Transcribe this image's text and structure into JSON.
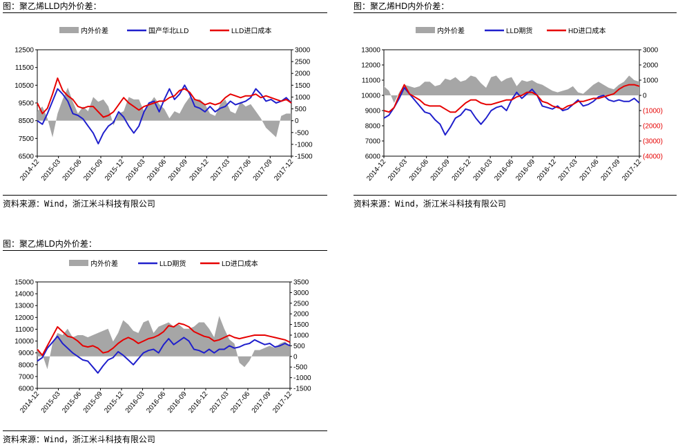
{
  "charts": [
    {
      "title": "图：聚乙烯LLD内外价差：",
      "source": "资料来源：Wind，浙江米斗科技有限公司",
      "chart_data": {
        "type": "line",
        "x_labels": [
          "2014-12",
          "2015-03",
          "2015-06",
          "2015-09",
          "2015-12",
          "2016-03",
          "2016-06",
          "2016-09",
          "2016-12",
          "2017-03",
          "2017-06",
          "2017-09",
          "2017-12"
        ],
        "left_ylim": [
          6500,
          12500
        ],
        "left_yticks": [
          "12500",
          "11500",
          "10500",
          "9500",
          "8500",
          "7500",
          "6500"
        ],
        "right_ylim": [
          -1500,
          3000
        ],
        "right_yticks": [
          "3000",
          "2500",
          "2000",
          "1500",
          "1000",
          "500",
          "0",
          "-500",
          "-1000",
          "-1500"
        ],
        "legend_position": "top",
        "series": [
          {
            "name": "内外价差",
            "type": "area",
            "axis": "right",
            "color": "#a6a6a6",
            "values": [
              400,
              600,
              100,
              -700,
              300,
              900,
              1400,
              800,
              300,
              600,
              400,
              1000,
              800,
              900,
              600,
              -200,
              300,
              400,
              1000,
              900,
              900,
              400,
              700,
              1000,
              700,
              500,
              100,
              400,
              300,
              700,
              1000,
              900,
              900,
              700,
              300,
              200,
              700,
              900,
              400,
              300,
              800,
              600,
              700,
              400,
              100,
              -300,
              -500,
              -700,
              200,
              300,
              300
            ]
          },
          {
            "name": "国产华北LLD",
            "type": "line",
            "axis": "left",
            "color": "#1f1fcc",
            "values": [
              8500,
              8300,
              8900,
              9600,
              10300,
              10000,
              9600,
              8900,
              8800,
              8600,
              8200,
              7800,
              7200,
              7800,
              8200,
              8400,
              9000,
              8700,
              8200,
              7800,
              8200,
              9000,
              9500,
              9600,
              9000,
              9700,
              10300,
              9700,
              10000,
              10500,
              10000,
              9300,
              9200,
              9000,
              9300,
              9000,
              9200,
              9300,
              9600,
              9400,
              9500,
              9600,
              9800,
              10300,
              10000,
              9600,
              9700,
              9500,
              9600,
              9800,
              9500
            ]
          },
          {
            "name": "LLD进口成本",
            "type": "line",
            "axis": "left",
            "color": "#e60000",
            "values": [
              9500,
              8900,
              9200,
              10000,
              10900,
              10200,
              9900,
              9700,
              9300,
              9200,
              9300,
              9300,
              9000,
              8700,
              8800,
              9000,
              9400,
              9800,
              9500,
              9300,
              9100,
              9300,
              9400,
              9500,
              9600,
              9600,
              9800,
              9900,
              10200,
              10300,
              10100,
              9700,
              9600,
              9400,
              9500,
              9400,
              9500,
              9800,
              10000,
              9900,
              9800,
              9900,
              9900,
              10000,
              9800,
              9900,
              9800,
              9700,
              9600,
              9700,
              9500
            ]
          }
        ]
      }
    },
    {
      "title": "图：聚乙烯HD内外价差：",
      "source": "资料来源：Wind，浙江米斗科技有限公司",
      "chart_data": {
        "type": "line",
        "x_labels": [
          "2014-12",
          "2015-03",
          "2015-06",
          "2015-09",
          "2015-12",
          "2016-03",
          "2016-06",
          "2016-09",
          "2016-12",
          "2017-03",
          "2017-06",
          "2017-09",
          "2017-12"
        ],
        "left_ylim": [
          6000,
          13000
        ],
        "left_yticks": [
          "13000",
          "12000",
          "11000",
          "10000",
          "9000",
          "8000",
          "7000",
          "6000"
        ],
        "right_ylim": [
          -4000,
          3000
        ],
        "right_yticks": [
          "3000",
          "2000",
          "1000",
          "0",
          "(1000)",
          "(2000)",
          "(3000)",
          "(4000)"
        ],
        "legend_position": "top",
        "series": [
          {
            "name": "内外价差",
            "type": "area",
            "axis": "right",
            "color": "#a6a6a6",
            "values": [
              600,
              300,
              -500,
              200,
              700,
              600,
              500,
              600,
              900,
              900,
              600,
              700,
              1100,
              1000,
              1200,
              900,
              1000,
              1300,
              1200,
              800,
              500,
              1200,
              1300,
              900,
              1100,
              1200,
              600,
              1000,
              900,
              1000,
              800,
              700,
              500,
              300,
              200,
              300,
              400,
              600,
              200,
              100,
              400,
              700,
              900,
              700,
              500,
              400,
              700,
              900,
              1300,
              1000,
              900
            ]
          },
          {
            "name": "LLD期货",
            "type": "line",
            "axis": "left",
            "color": "#1f1fcc",
            "values": [
              8500,
              8700,
              9200,
              9800,
              10500,
              10100,
              9700,
              9300,
              8900,
              8800,
              8400,
              8100,
              7400,
              7900,
              8500,
              8700,
              9100,
              9000,
              8500,
              8100,
              8500,
              9000,
              9200,
              9300,
              9000,
              9700,
              10200,
              9800,
              10100,
              10400,
              10000,
              9300,
              9200,
              9100,
              9300,
              9000,
              9100,
              9400,
              9700,
              9300,
              9400,
              9600,
              9900,
              10000,
              9700,
              9600,
              9700,
              9600,
              9600,
              9800,
              9500
            ]
          },
          {
            "name": "HD进口成本",
            "type": "line",
            "axis": "left",
            "color": "#e60000",
            "values": [
              9000,
              8900,
              9200,
              10000,
              10700,
              10100,
              9900,
              9700,
              9400,
              9300,
              9300,
              9300,
              9100,
              8900,
              8900,
              9200,
              9500,
              9700,
              9700,
              9500,
              9400,
              9400,
              9500,
              9600,
              9700,
              9700,
              9900,
              10000,
              10200,
              10200,
              10000,
              9600,
              9500,
              9300,
              9200,
              9100,
              9300,
              9400,
              9600,
              9600,
              9700,
              9800,
              9800,
              9900,
              10000,
              10100,
              10400,
              10600,
              10700,
              10700,
              10600
            ]
          }
        ]
      }
    },
    {
      "title": "图：聚乙烯LD内外价差：",
      "source": "资料来源：Wind，浙江米斗科技有限公司",
      "chart_data": {
        "type": "line",
        "x_labels": [
          "2014-12",
          "2015-03",
          "2015-06",
          "2015-09",
          "2015-12",
          "2016-03",
          "2016-06",
          "2016-09",
          "2016-12",
          "2017-03",
          "2017-06",
          "2017-09",
          "2017-12"
        ],
        "left_ylim": [
          6000,
          15000
        ],
        "left_yticks": [
          "15000",
          "14000",
          "13000",
          "12000",
          "11000",
          "10000",
          "9000",
          "8000",
          "7000",
          "6000"
        ],
        "right_ylim": [
          -1500,
          3500
        ],
        "right_yticks": [
          "3500",
          "3000",
          "2500",
          "2000",
          "1500",
          "1000",
          "500",
          "0",
          "-500",
          "-1000",
          "-1500"
        ],
        "legend_position": "top",
        "series": [
          {
            "name": "内外价差",
            "type": "area",
            "axis": "right",
            "color": "#a6a6a6",
            "values": [
              400,
              100,
              -600,
              600,
              1100,
              1000,
              1300,
              900,
              1000,
              1000,
              900,
              1000,
              1100,
              1200,
              1300,
              700,
              1100,
              1700,
              1500,
              1200,
              1100,
              1600,
              1700,
              1100,
              1400,
              1500,
              1600,
              1400,
              1500,
              1300,
              1300,
              1400,
              1600,
              1600,
              1300,
              900,
              1900,
              1300,
              800,
              600,
              -300,
              -500,
              -200,
              300,
              300,
              400,
              500,
              400,
              600,
              700,
              500
            ]
          },
          {
            "name": "LLD期货",
            "type": "line",
            "axis": "left",
            "color": "#1f1fcc",
            "values": [
              8300,
              8600,
              9400,
              9900,
              10400,
              9800,
              9400,
              9000,
              8700,
              8400,
              8300,
              7800,
              7300,
              7900,
              8400,
              8600,
              9100,
              8800,
              8400,
              8000,
              8500,
              9000,
              9200,
              9300,
              9000,
              9700,
              10200,
              9700,
              10000,
              10300,
              10000,
              9300,
              9200,
              9000,
              9300,
              9000,
              9300,
              9300,
              9600,
              9400,
              9500,
              9700,
              9800,
              10100,
              9900,
              9700,
              9800,
              9500,
              9600,
              9800,
              9600
            ]
          },
          {
            "name": "LD进口成本",
            "type": "line",
            "axis": "left",
            "color": "#e60000",
            "values": [
              9300,
              8800,
              9600,
              10400,
              11200,
              10800,
              10400,
              10300,
              10000,
              9600,
              9500,
              9600,
              9400,
              9000,
              9100,
              9400,
              9800,
              10100,
              10300,
              10100,
              9800,
              10000,
              10200,
              10300,
              10500,
              10800,
              11300,
              11200,
              11500,
              11400,
              11200,
              10800,
              10600,
              10400,
              10300,
              10000,
              10100,
              10300,
              10500,
              10300,
              10200,
              10300,
              10400,
              10500,
              10500,
              10500,
              10400,
              10300,
              10200,
              10100,
              9900
            ]
          }
        ]
      }
    }
  ]
}
